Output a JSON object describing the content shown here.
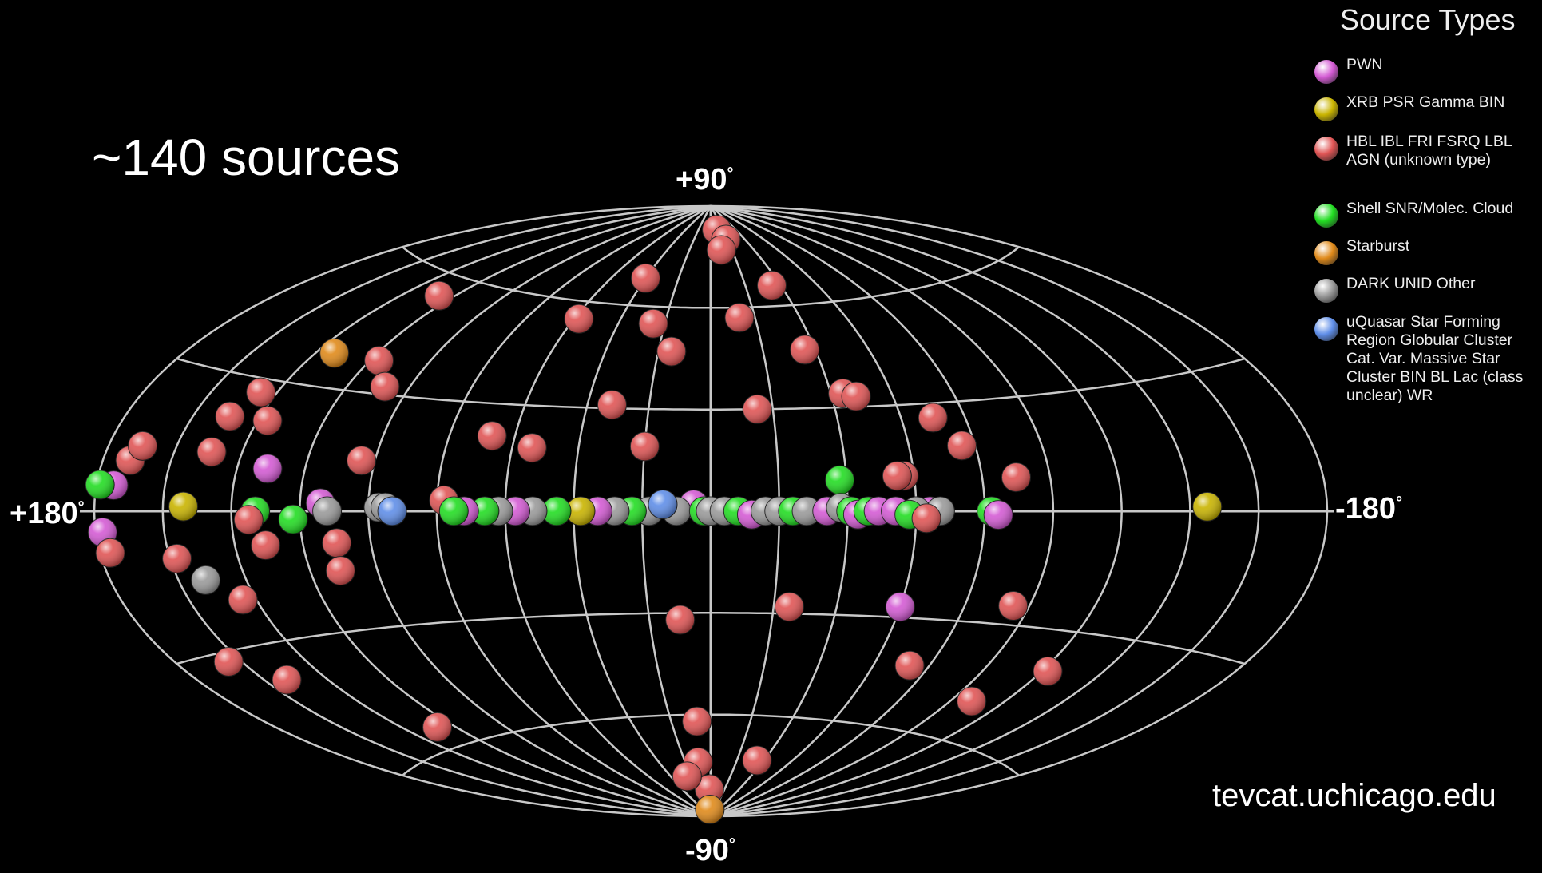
{
  "count_label": "~140 sources",
  "credit": "tevcat.uchicago.edu",
  "axis_labels": {
    "north": "+90",
    "south": "-90",
    "west": "+180",
    "east": "-180",
    "degree": "°"
  },
  "legend": {
    "title": "Source Types",
    "items": [
      {
        "label": "PWN",
        "color": "#d45bd4",
        "icon": "magenta-sphere"
      },
      {
        "label": "XRB PSR Gamma BIN",
        "color": "#c9b400",
        "icon": "yellow-sphere"
      },
      {
        "label": "HBL IBL FRI FSRQ LBL AGN (unknown type)",
        "color": "#e05555",
        "icon": "red-sphere"
      },
      {
        "label": "Shell SNR/Molec. Cloud",
        "color": "#22dd22",
        "icon": "green-sphere"
      },
      {
        "label": "Starburst",
        "color": "#e08a1a",
        "icon": "orange-sphere"
      },
      {
        "label": "DARK UNID Other",
        "color": "#9a9a9a",
        "icon": "gray-sphere"
      },
      {
        "label": "uQuasar Star Forming Region Globular Cluster Cat. Var. Massive Star Cluster BIN BL Lac (class unclear) WR",
        "color": "#5f8ee8",
        "icon": "blue-sphere"
      }
    ]
  },
  "sky_map": {
    "projection": "aitoff-galactic",
    "sources": [
      {
        "l": 126,
        "b": 55,
        "type": 2
      },
      {
        "l": 117,
        "b": 38,
        "type": 2
      },
      {
        "l": 134,
        "b": 38,
        "type": 4
      },
      {
        "l": 108,
        "b": 32,
        "type": 2
      },
      {
        "l": 145,
        "b": 27,
        "type": 2
      },
      {
        "l": 149,
        "b": 21,
        "type": 2
      },
      {
        "l": 137,
        "b": 21,
        "type": 2
      },
      {
        "l": 149,
        "b": 13,
        "type": 2
      },
      {
        "l": 104,
        "b": 13,
        "type": 2
      },
      {
        "l": 131,
        "b": 10,
        "type": 0
      },
      {
        "l": 114,
        "b": 2,
        "type": 0
      },
      {
        "l": 78,
        "b": 3,
        "type": 2
      },
      {
        "l": 154,
        "b": 1,
        "type": 1
      },
      {
        "l": 133,
        "b": 0,
        "type": 3
      },
      {
        "l": 122,
        "b": -2,
        "type": 3
      },
      {
        "l": 135,
        "b": -2,
        "type": 2
      },
      {
        "l": 158,
        "b": -10,
        "type": 2
      },
      {
        "l": 152,
        "b": -15,
        "type": 5
      },
      {
        "l": 131,
        "b": -8,
        "type": 2
      },
      {
        "l": 110,
        "b": -8,
        "type": 2
      },
      {
        "l": 111,
        "b": -15,
        "type": 2
      },
      {
        "l": 144,
        "b": -20,
        "type": 2
      },
      {
        "l": 164,
        "b": -32,
        "type": 2
      },
      {
        "l": 153,
        "b": -38,
        "type": 2
      },
      {
        "l": 127,
        "b": -55,
        "type": 2
      },
      {
        "l": 40,
        "b": 68,
        "type": 2
      },
      {
        "l": 58,
        "b": 55,
        "type": 2
      },
      {
        "l": 25,
        "b": 55,
        "type": 2
      },
      {
        "l": 15,
        "b": 47,
        "type": 2
      },
      {
        "l": 32,
        "b": 31,
        "type": 2
      },
      {
        "l": -13,
        "b": 57,
        "type": 2
      },
      {
        "l": -36,
        "b": 47,
        "type": 2
      },
      {
        "l": -44,
        "b": 34,
        "type": 2
      },
      {
        "l": -48,
        "b": 33,
        "type": 2
      },
      {
        "l": -15,
        "b": 30,
        "type": 2
      },
      {
        "l": -70,
        "b": 26,
        "type": 2
      },
      {
        "l": -76,
        "b": 18,
        "type": 2
      },
      {
        "l": 20,
        "b": 19,
        "type": 2
      },
      {
        "l": -38,
        "b": 9,
        "type": 3
      },
      {
        "l": 54,
        "b": 18,
        "type": 2
      },
      {
        "l": 67,
        "b": 21,
        "type": 2
      },
      {
        "l": -10,
        "b": 83,
        "type": 2
      },
      {
        "l": -18,
        "b": 80,
        "type": 2
      },
      {
        "l": -10,
        "b": 77,
        "type": 2
      },
      {
        "l": -35,
        "b": 66,
        "type": 2
      },
      {
        "l": -57,
        "b": 10,
        "type": 2
      },
      {
        "l": -55,
        "b": 10,
        "type": 2
      },
      {
        "l": -90,
        "b": 9,
        "type": 2
      },
      {
        "l": 172,
        "b": 10,
        "type": 2
      },
      {
        "l": 175,
        "b": 5,
        "type": 0
      },
      {
        "l": 179,
        "b": 5,
        "type": 3
      },
      {
        "l": 170,
        "b": 13,
        "type": 2
      },
      {
        "l": 178,
        "b": -4,
        "type": 0
      },
      {
        "l": 177,
        "b": -8,
        "type": 2
      },
      {
        "l": -145,
        "b": 1,
        "type": 1
      },
      {
        "l": 5,
        "b": 2,
        "type": 0
      },
      {
        "l": 10,
        "b": 0,
        "type": 5
      },
      {
        "l": 18,
        "b": 0,
        "type": 5
      },
      {
        "l": 23,
        "b": 0,
        "type": 3
      },
      {
        "l": 28,
        "b": 0,
        "type": 5
      },
      {
        "l": 33,
        "b": 0,
        "type": 0
      },
      {
        "l": 38,
        "b": 0,
        "type": 1
      },
      {
        "l": 45,
        "b": 0,
        "type": 3
      },
      {
        "l": 52,
        "b": 0,
        "type": 5
      },
      {
        "l": 57,
        "b": 0,
        "type": 0
      },
      {
        "l": 62,
        "b": 0,
        "type": 5
      },
      {
        "l": 66,
        "b": 0,
        "type": 3
      },
      {
        "l": 72,
        "b": 0,
        "type": 0
      },
      {
        "l": 75,
        "b": 0,
        "type": 3
      },
      {
        "l": 14,
        "b": 2,
        "type": 6
      },
      {
        "l": 2,
        "b": 0,
        "type": 3
      },
      {
        "l": 0,
        "b": 0,
        "type": 5
      },
      {
        "l": -4,
        "b": 0,
        "type": 5
      },
      {
        "l": -8,
        "b": 0,
        "type": 3
      },
      {
        "l": -12,
        "b": -1,
        "type": 0
      },
      {
        "l": -16,
        "b": 0,
        "type": 5
      },
      {
        "l": -20,
        "b": 0,
        "type": 5
      },
      {
        "l": -24,
        "b": 0,
        "type": 3
      },
      {
        "l": -28,
        "b": 0,
        "type": 5
      },
      {
        "l": -34,
        "b": 0,
        "type": 0
      },
      {
        "l": -38,
        "b": 1,
        "type": 5
      },
      {
        "l": -41,
        "b": 0,
        "type": 3
      },
      {
        "l": -43,
        "b": -1,
        "type": 0
      },
      {
        "l": -46,
        "b": 0,
        "type": 3
      },
      {
        "l": -49,
        "b": 0,
        "type": 0
      },
      {
        "l": -54,
        "b": 0,
        "type": 0
      },
      {
        "l": -64,
        "b": 0,
        "type": 0
      },
      {
        "l": -67,
        "b": 0,
        "type": 5
      },
      {
        "l": -82,
        "b": 0,
        "type": 3
      },
      {
        "l": -84,
        "b": -1,
        "type": 0
      },
      {
        "l": -60,
        "b": 0,
        "type": 5
      },
      {
        "l": -58,
        "b": -1,
        "type": 3
      },
      {
        "l": -63,
        "b": -2,
        "type": 2
      },
      {
        "l": 97,
        "b": 1,
        "type": 5
      },
      {
        "l": 95,
        "b": 1,
        "type": 5
      },
      {
        "l": 93,
        "b": 0,
        "type": 6
      },
      {
        "l": 112,
        "b": 0,
        "type": 5
      },
      {
        "l": 10,
        "b": -32,
        "type": 2
      },
      {
        "l": -25,
        "b": -28,
        "type": 2
      },
      {
        "l": -60,
        "b": -27,
        "type": 0
      },
      {
        "l": -95,
        "b": -25,
        "type": 2
      },
      {
        "l": -73,
        "b": -43,
        "type": 2
      },
      {
        "l": -108,
        "b": -50,
        "type": 2
      },
      {
        "l": -122,
        "b": -40,
        "type": 2
      },
      {
        "l": 7,
        "b": -62,
        "type": 2
      },
      {
        "l": 10,
        "b": -74,
        "type": 2
      },
      {
        "l": 2,
        "b": -82,
        "type": 2
      },
      {
        "l": 24,
        "b": -78,
        "type": 2
      },
      {
        "l": 5,
        "b": -88,
        "type": 4
      },
      {
        "l": -35,
        "b": -73,
        "type": 2
      }
    ]
  }
}
